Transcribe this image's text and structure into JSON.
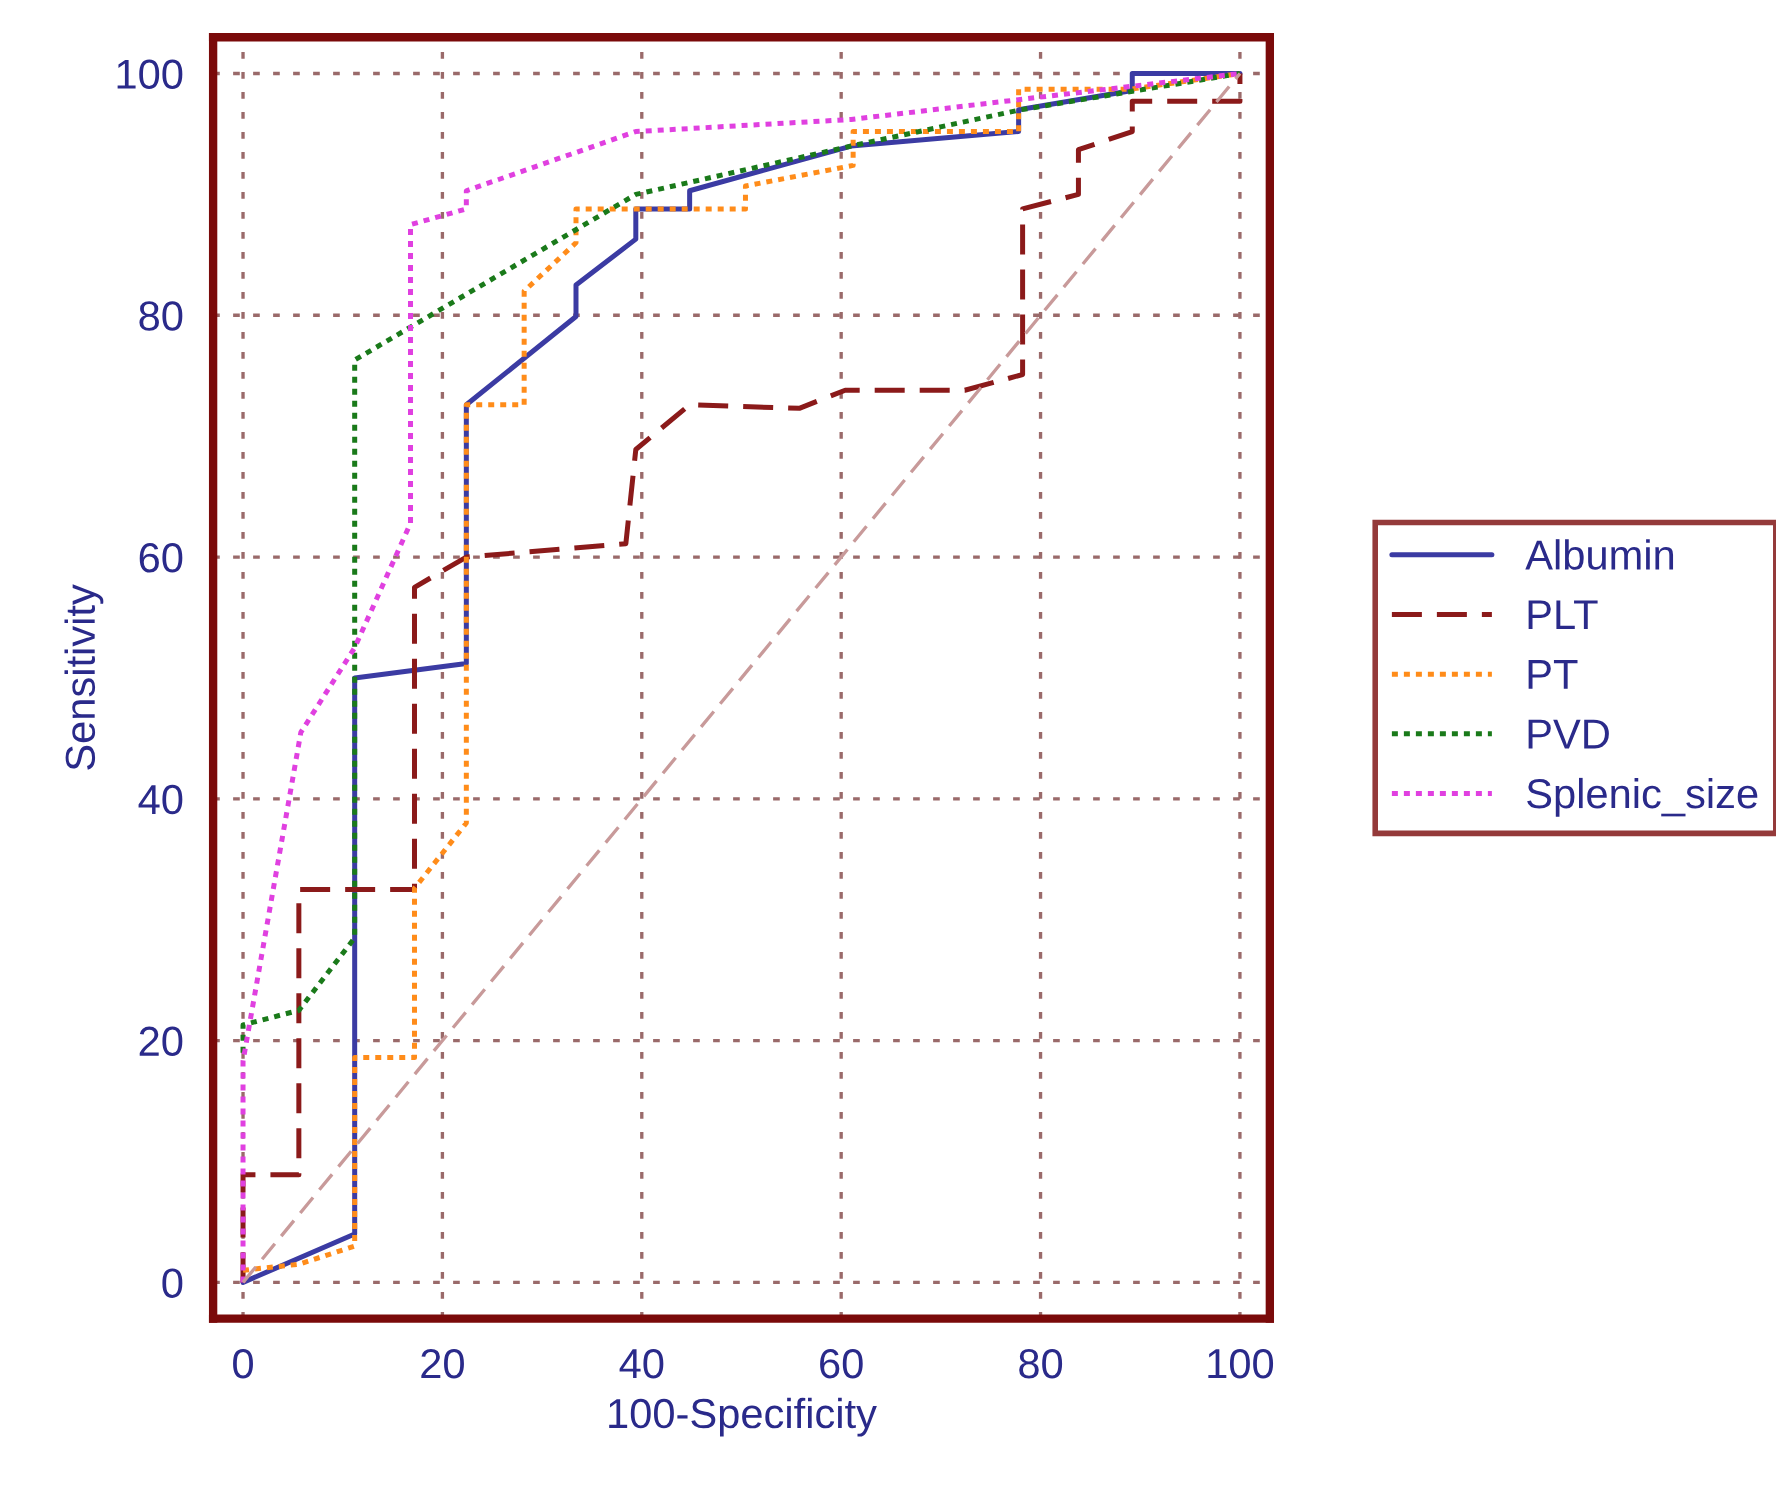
{
  "chart_data": {
    "type": "line",
    "xlabel": "100-Specificity",
    "ylabel": "Sensitivity",
    "xlim": [
      -3,
      103
    ],
    "ylim": [
      -3,
      103
    ],
    "xticks": [
      0,
      20,
      40,
      60,
      80,
      100
    ],
    "yticks": [
      0,
      20,
      40,
      60,
      80,
      100
    ],
    "grid": true,
    "legend": "right",
    "marker": "none",
    "series": [
      {
        "name": "Albumin",
        "color": "#3b3ba3",
        "line_style": "solid",
        "x": [
          0,
          11.2,
          11.2,
          22.4,
          22.4,
          33.4,
          33.4,
          39.4,
          39.4,
          44.8,
          44.8,
          61,
          77.8,
          77.8,
          89.2,
          89.2,
          100
        ],
        "values": [
          0,
          4,
          50,
          51.2,
          72.6,
          79.9,
          82.5,
          86.3,
          88.8,
          88.8,
          90.3,
          94,
          95.2,
          97,
          98.6,
          100,
          100
        ]
      },
      {
        "name": "PLT",
        "color": "#8b1a1a",
        "line_style": "dashed",
        "x": [
          0,
          0,
          5.6,
          5.6,
          17.2,
          17.2,
          22.4,
          38.4,
          39.4,
          44.8,
          55.8,
          60.4,
          72.4,
          78.2,
          78.2,
          83.8,
          83.8,
          89.2,
          89.2,
          100,
          100
        ],
        "values": [
          0,
          8.9,
          8.9,
          32.5,
          32.5,
          57.5,
          60,
          61.1,
          68.9,
          72.6,
          72.3,
          73.8,
          73.8,
          75.1,
          88.8,
          90,
          93.7,
          95.2,
          97.7,
          97.7,
          100
        ]
      },
      {
        "name": "PT",
        "color": "#ff8c1a",
        "line_style": "dotted",
        "x": [
          0,
          5.6,
          11.2,
          11.2,
          17.2,
          17.2,
          22.4,
          22.4,
          28.2,
          28.2,
          33.4,
          33.4,
          50.4,
          50.4,
          61.2,
          61.2,
          77.8,
          77.8,
          89,
          100
        ],
        "values": [
          1,
          1.5,
          3,
          18.6,
          18.6,
          32.6,
          38,
          72.6,
          72.6,
          82,
          86,
          88.8,
          88.8,
          90.7,
          92.4,
          95.2,
          95.2,
          98.7,
          98.7,
          100
        ]
      },
      {
        "name": "PVD",
        "color": "#1a7a1a",
        "line_style": "dotted",
        "x": [
          0,
          0,
          5.6,
          11.2,
          11.2,
          39.4,
          61,
          78,
          100
        ],
        "values": [
          19,
          21.3,
          22.5,
          28.5,
          76.3,
          90,
          94,
          97,
          100
        ]
      },
      {
        "name": "Splenic_size",
        "color": "#e040e0",
        "line_style": "dotted",
        "x": [
          0,
          0,
          5.8,
          11.2,
          16.8,
          16.8,
          22.4,
          22.4,
          39.4,
          61,
          100
        ],
        "values": [
          0,
          18.3,
          45.5,
          52.5,
          62.8,
          87.5,
          88.8,
          90.3,
          95.2,
          96.2,
          100
        ]
      },
      {
        "color": "#c89a9a",
        "line_style": "dashed",
        "x": [
          0,
          100
        ],
        "values": [
          0,
          100
        ]
      }
    ]
  }
}
